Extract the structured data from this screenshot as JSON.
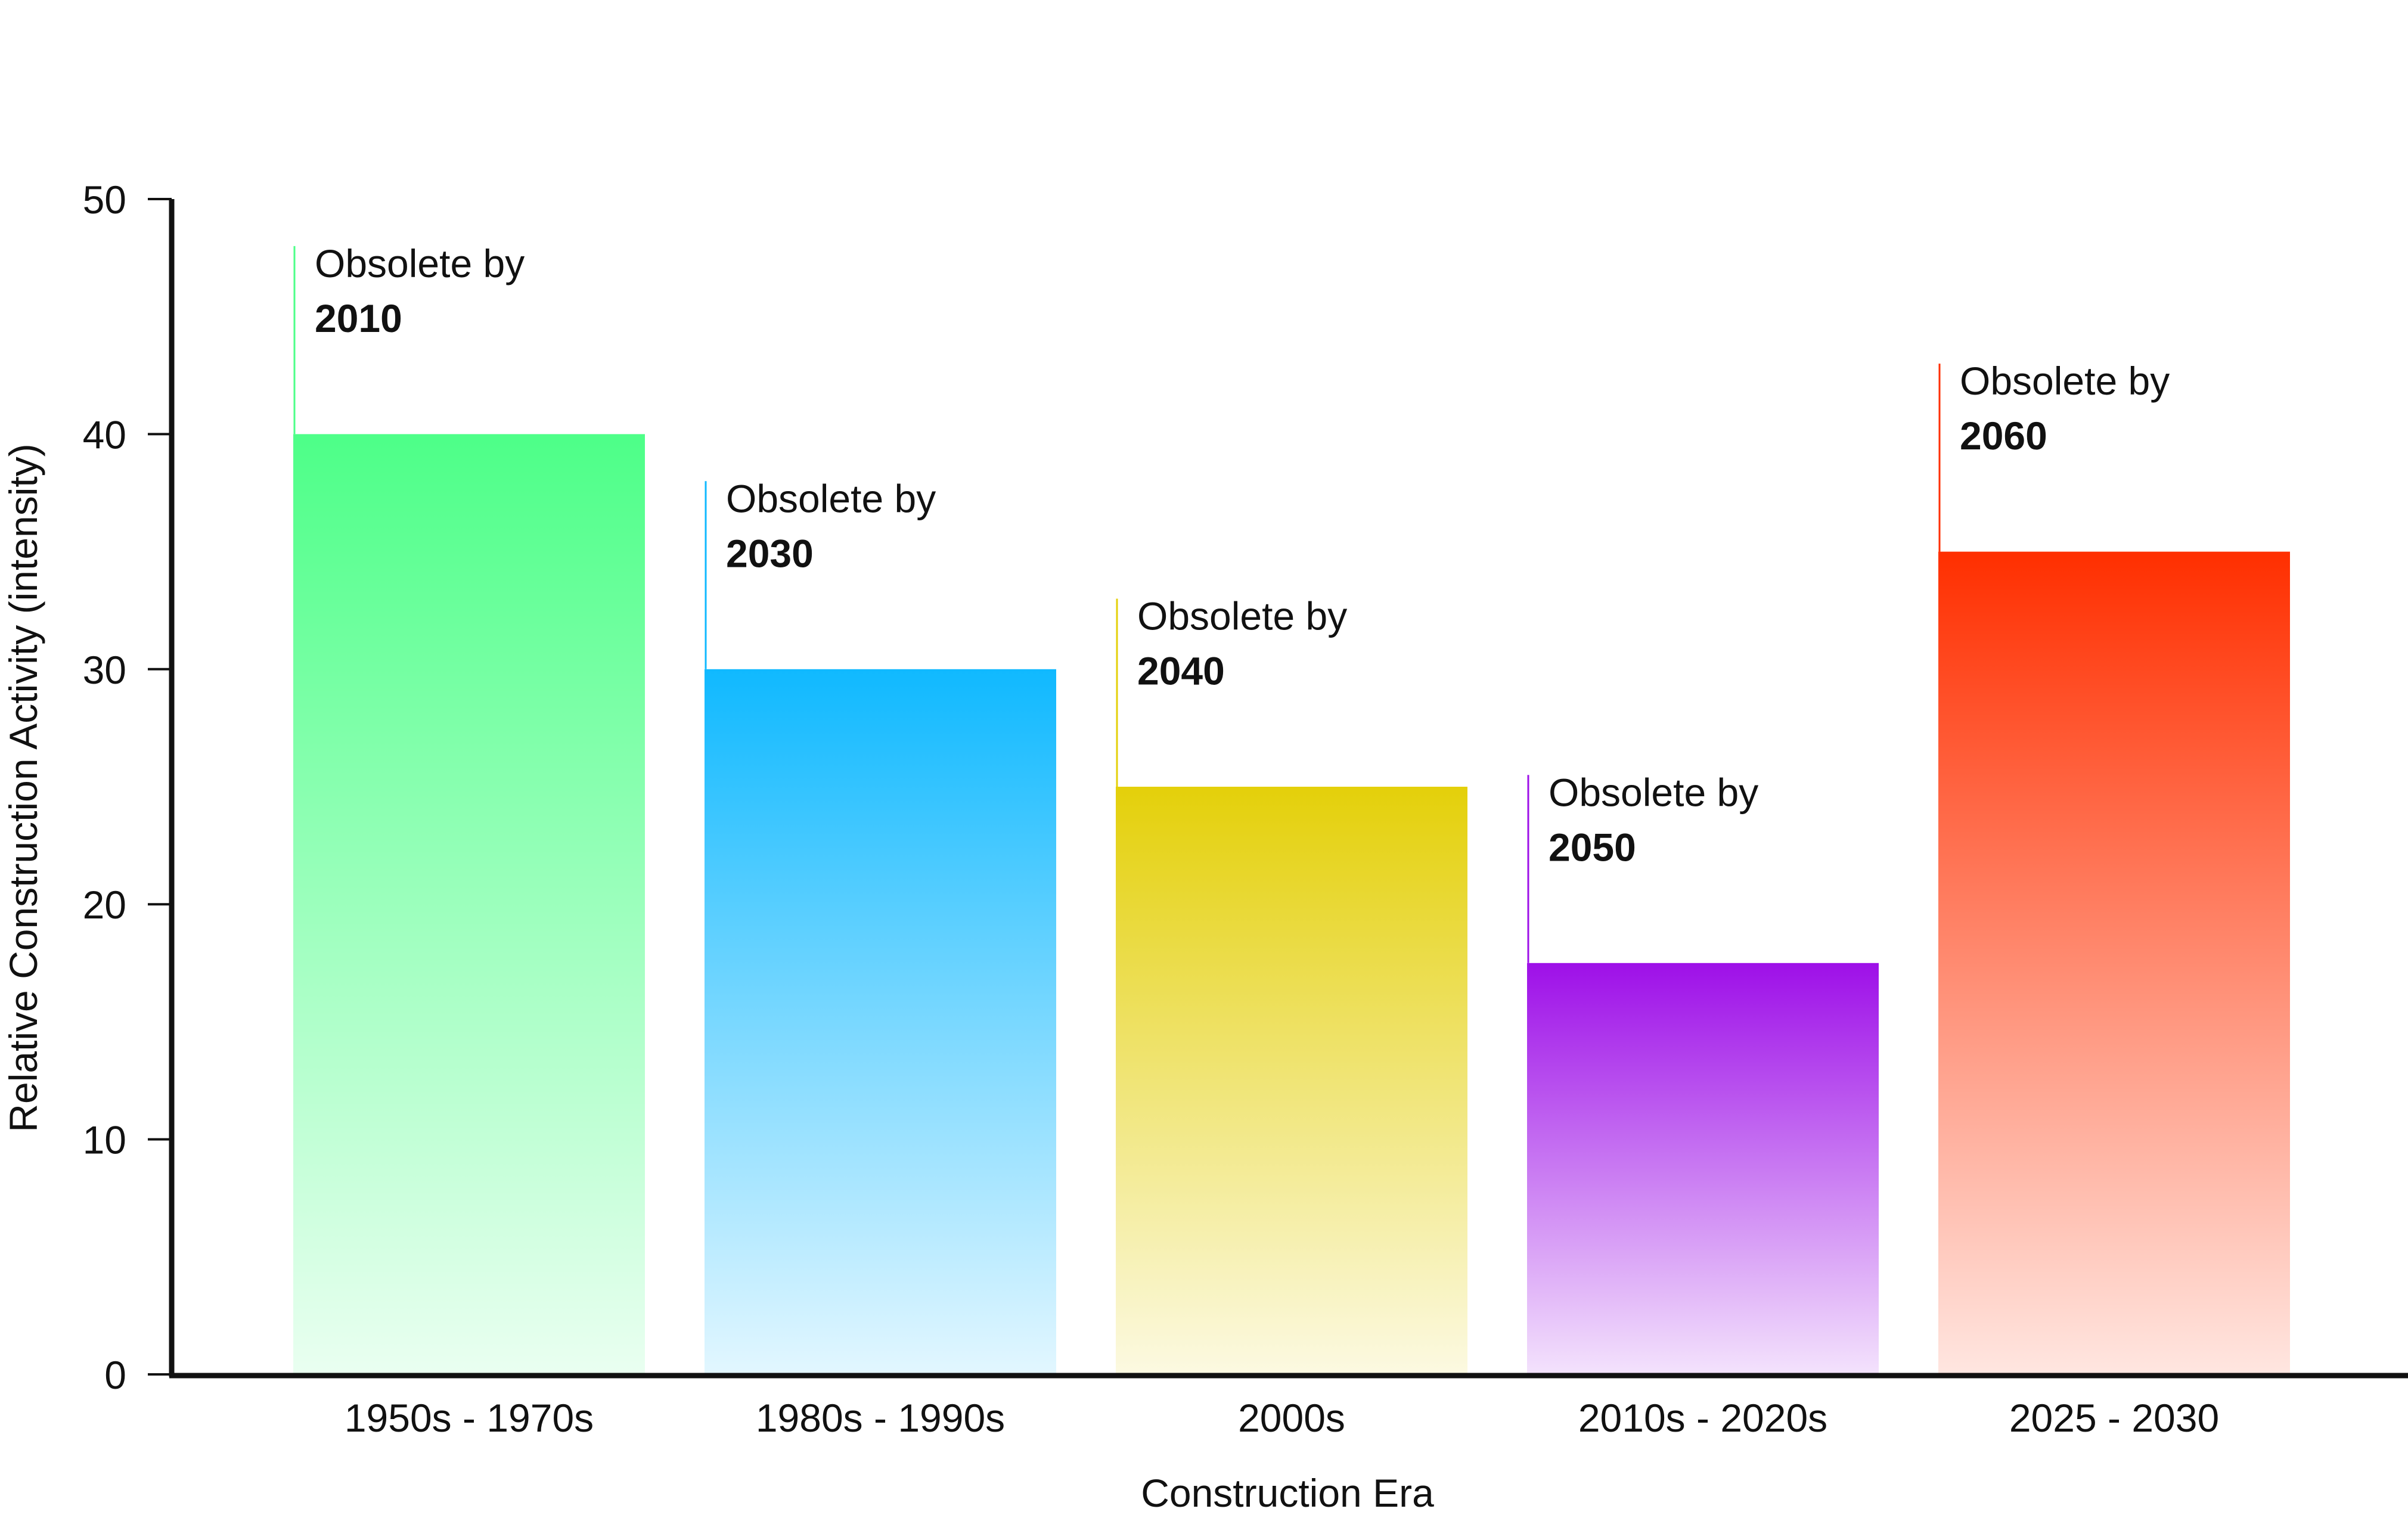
{
  "chart_data": {
    "type": "bar",
    "title": "",
    "xlabel": "Construction Era",
    "ylabel": "Relative Construction Activity (intensity)",
    "ylim": [
      0,
      50
    ],
    "yticks": [
      "0",
      "10",
      "20",
      "30",
      "40",
      "50"
    ],
    "categories": [
      "1950s - 1970s",
      "1980s - 1990s",
      "2000s",
      "2010s - 2020s",
      "2025 - 2030"
    ],
    "values": [
      40,
      30,
      25,
      17.5,
      35
    ],
    "colors": [
      "#4dff88",
      "#10b9ff",
      "#e4d00a",
      "#9e10e8",
      "#ff2f00"
    ],
    "annotations": [
      {
        "prefix": "Obsolete by",
        "year": "2010"
      },
      {
        "prefix": "Obsolete by",
        "year": "2030"
      },
      {
        "prefix": "Obsolete by",
        "year": "2040"
      },
      {
        "prefix": "Obsolete by",
        "year": "2050"
      },
      {
        "prefix": "Obsolete by",
        "year": "2060"
      }
    ],
    "annotation_tops": [
      48,
      38,
      33,
      25.5,
      43
    ],
    "grid": false,
    "legend": "none"
  }
}
